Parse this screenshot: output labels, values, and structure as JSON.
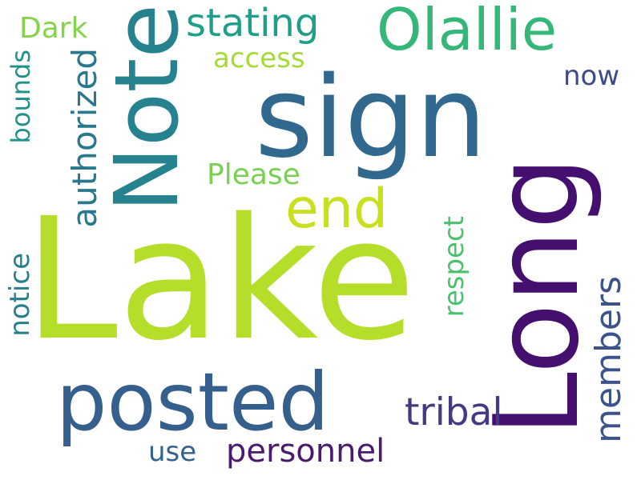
{
  "words": [
    {
      "key": "lake",
      "text": "Lake",
      "color": "#b5de2b"
    },
    {
      "key": "sign",
      "text": "sign",
      "color": "#31688e"
    },
    {
      "key": "long",
      "text": "Long",
      "color": "#440f6e"
    },
    {
      "key": "note",
      "text": "Note",
      "color": "#26828e"
    },
    {
      "key": "posted",
      "text": "posted",
      "color": "#355f8d"
    },
    {
      "key": "olallie",
      "text": "Olallie",
      "color": "#35b779"
    },
    {
      "key": "end",
      "text": "end",
      "color": "#c8e020"
    },
    {
      "key": "authorized",
      "text": "authorized",
      "color": "#2a788e"
    },
    {
      "key": "tribal",
      "text": "tribal",
      "color": "#443983"
    },
    {
      "key": "stating",
      "text": "stating",
      "color": "#1f9e89"
    },
    {
      "key": "members",
      "text": "members",
      "color": "#3b528b"
    },
    {
      "key": "personnel",
      "text": "personnel",
      "color": "#4b1a6e"
    },
    {
      "key": "notice",
      "text": "notice",
      "color": "#277f8e"
    },
    {
      "key": "respect",
      "text": "respect",
      "color": "#4ac16d"
    },
    {
      "key": "please",
      "text": "Please",
      "color": "#7ad151"
    },
    {
      "key": "bounds",
      "text": "bounds",
      "color": "#21918c"
    },
    {
      "key": "access",
      "text": "access",
      "color": "#a5db36"
    },
    {
      "key": "now",
      "text": "now",
      "color": "#3e4a89"
    },
    {
      "key": "dark",
      "text": "Dark",
      "color": "#84d44b"
    },
    {
      "key": "use",
      "text": "use",
      "color": "#33638d"
    }
  ]
}
